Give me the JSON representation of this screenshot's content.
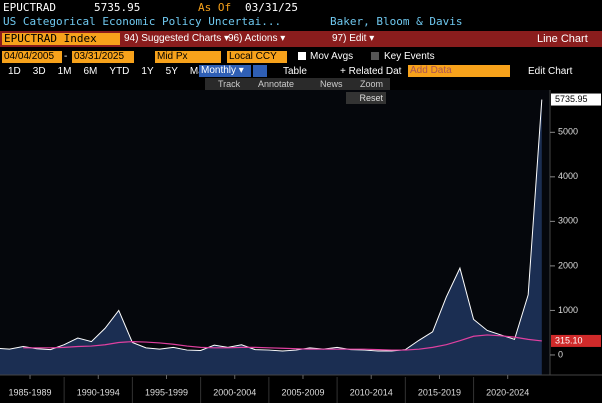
{
  "header": {
    "ticker": "EPUCTRAD",
    "last": "5735.95",
    "as_of_label": "As Of",
    "as_of": "03/31/25",
    "description": "US Categorical Economic Policy Uncertai...",
    "source": "Baker, Bloom & Davis"
  },
  "toolbar": {
    "security": "EPUCTRAD Index",
    "menus": [
      "94) Suggested Charts ▾",
      "96) Actions ▾",
      "97) Edit ▾"
    ],
    "chart_type": "Line Chart"
  },
  "range": {
    "start": "04/04/2005",
    "separator": "-",
    "end": "03/31/2025",
    "price": "Mid Px",
    "currency": "Local CCY",
    "mov_avgs": "Mov Avgs",
    "key_events": "Key Events"
  },
  "periods": [
    "1D",
    "3D",
    "1M",
    "6M",
    "YTD",
    "1Y",
    "5Y",
    "Max"
  ],
  "frequency": "Monthly ▾",
  "table": "Table",
  "related": "+ Related Dat",
  "add_data": "Add Data",
  "edit_chart": "Edit Chart",
  "tools": [
    "Track",
    "Annotate",
    "News",
    "Zoom"
  ],
  "reset": "Reset",
  "chart_data": {
    "type": "line",
    "x": [
      1985,
      1986,
      1987,
      1988,
      1989,
      1990,
      1991,
      1992,
      1993,
      1994,
      1995,
      1996,
      1997,
      1998,
      1999,
      2000,
      2001,
      2002,
      2003,
      2004,
      2005,
      2006,
      2007,
      2008,
      2009,
      2010,
      2011,
      2012,
      2013,
      2014,
      2015,
      2016,
      2017,
      2018,
      2019,
      2020,
      2021,
      2022,
      2023,
      2024,
      2025
    ],
    "series": [
      {
        "color": "#ffffff",
        "fill": "#1b2e52",
        "label_fill": "#ffffff",
        "label_text": "#000000",
        "values": [
          150,
          130,
          190,
          140,
          120,
          230,
          380,
          300,
          600,
          1000,
          280,
          160,
          130,
          170,
          110,
          100,
          220,
          170,
          230,
          120,
          110,
          90,
          110,
          160,
          130,
          170,
          120,
          110,
          90,
          90,
          120,
          330,
          520,
          1300,
          1950,
          800,
          550,
          450,
          350,
          1350,
          5735.95
        ]
      },
      {
        "color": "#e040a0",
        "label_fill": "#d02a2a",
        "label_text": "#ffffff",
        "values": [
          null,
          null,
          160,
          160,
          160,
          170,
          190,
          200,
          230,
          280,
          300,
          290,
          270,
          240,
          200,
          170,
          160,
          160,
          170,
          170,
          160,
          150,
          140,
          130,
          130,
          130,
          130,
          130,
          120,
          110,
          110,
          130,
          170,
          230,
          320,
          420,
          450,
          430,
          400,
          350,
          315.1
        ],
        "value_labels": [
          null,
          null,
          null,
          null,
          null,
          null,
          null,
          null,
          null,
          null,
          null,
          null,
          null,
          null,
          null,
          null,
          null,
          null,
          null,
          null,
          null,
          null,
          null,
          null,
          null,
          null,
          null,
          null,
          null,
          null,
          null,
          null,
          null,
          null,
          null,
          null,
          null,
          null,
          null,
          null,
          "315.10"
        ]
      }
    ],
    "xlim": [
      1985.3,
      2025.6
    ],
    "xticks": [
      {
        "value": 1987.5,
        "label": "1985-1989"
      },
      {
        "value": 1992.5,
        "label": "1990-1994"
      },
      {
        "value": 1997.5,
        "label": "1995-1999"
      },
      {
        "value": 2002.5,
        "label": "2000-2004"
      },
      {
        "value": 2007.5,
        "label": "2005-2009"
      },
      {
        "value": 2012.5,
        "label": "2010-2014"
      },
      {
        "value": 2017.5,
        "label": "2015-2019"
      },
      {
        "value": 2022.5,
        "label": "2020-2024"
      }
    ],
    "ylim": [
      -450,
      5950
    ],
    "yticks": [
      0,
      1000,
      2000,
      3000,
      4000,
      5000
    ]
  }
}
